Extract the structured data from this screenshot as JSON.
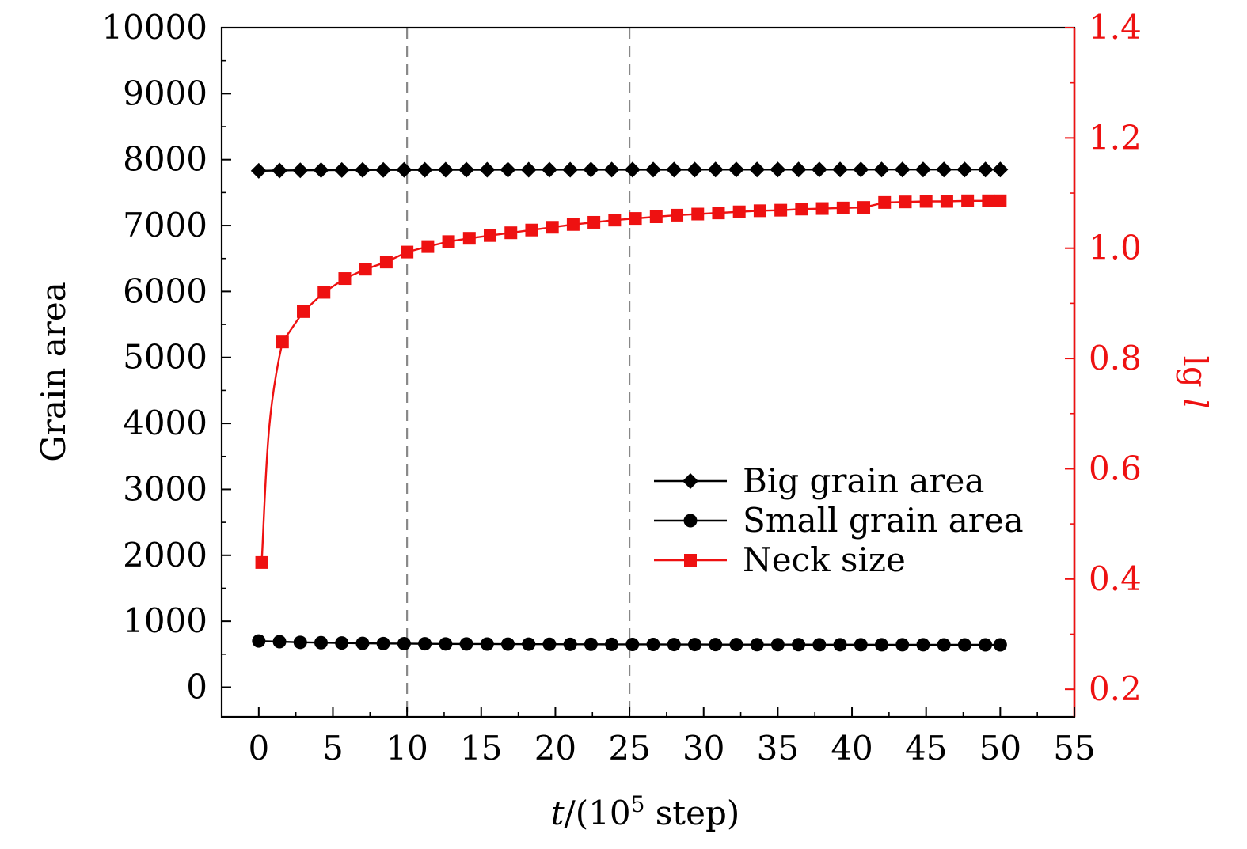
{
  "chart_data": {
    "type": "line",
    "title": "",
    "xlabel": "t/(10⁵ step)",
    "xlabel_parts": {
      "var": "t",
      "pre": "/(10",
      "sup": "5",
      "post": " step)"
    },
    "ylabel": "Grain area",
    "y2label": "lg l",
    "y2label_parts": {
      "pre": "lg ",
      "var": "l"
    },
    "xlim": [
      -2.5,
      55
    ],
    "ylim": [
      -450,
      10000
    ],
    "y2lim": [
      0.15,
      1.4
    ],
    "xticks": [
      0,
      5,
      10,
      15,
      20,
      25,
      30,
      35,
      40,
      45,
      50,
      55
    ],
    "yticks": [
      0,
      1000,
      2000,
      3000,
      4000,
      5000,
      6000,
      7000,
      8000,
      9000,
      10000
    ],
    "y2ticks": [
      "0.2",
      "0.4",
      "0.6",
      "0.8",
      "1.0",
      "1.2",
      "1.4"
    ],
    "vlines": [
      10,
      25
    ],
    "legend_position": "lower-right",
    "colors": {
      "black": "#000000",
      "red": "#ee1111",
      "dashed": "#888888"
    },
    "series": [
      {
        "name": "Big grain area",
        "axis": "left",
        "marker": "diamond",
        "color": "#000000",
        "x": [
          0,
          1.4,
          2.8,
          4.2,
          5.6,
          7,
          8.4,
          9.8,
          11.2,
          12.6,
          14,
          15.4,
          16.8,
          18.2,
          19.6,
          21,
          22.4,
          23.8,
          25.2,
          26.6,
          28,
          29.4,
          30.8,
          32.2,
          33.6,
          35,
          36.4,
          37.8,
          39.2,
          40.6,
          42,
          43.4,
          44.8,
          46.2,
          47.6,
          49,
          50
        ],
        "values": [
          7830,
          7835,
          7838,
          7840,
          7842,
          7843,
          7844,
          7845,
          7845,
          7846,
          7846,
          7846,
          7847,
          7847,
          7847,
          7847,
          7848,
          7848,
          7848,
          7848,
          7848,
          7848,
          7849,
          7849,
          7849,
          7849,
          7849,
          7849,
          7849,
          7849,
          7850,
          7850,
          7850,
          7850,
          7850,
          7850,
          7850
        ]
      },
      {
        "name": "Small grain area",
        "axis": "left",
        "marker": "circle",
        "color": "#000000",
        "x": [
          0,
          1.4,
          2.8,
          4.2,
          5.6,
          7,
          8.4,
          9.8,
          11.2,
          12.6,
          14,
          15.4,
          16.8,
          18.2,
          19.6,
          21,
          22.4,
          23.8,
          25.2,
          26.6,
          28,
          29.4,
          30.8,
          32.2,
          33.6,
          35,
          36.4,
          37.8,
          39.2,
          40.6,
          42,
          43.4,
          44.8,
          46.2,
          47.6,
          49,
          50
        ],
        "values": [
          700,
          690,
          680,
          675,
          670,
          665,
          662,
          660,
          658,
          656,
          655,
          654,
          653,
          652,
          651,
          650,
          650,
          649,
          648,
          648,
          647,
          647,
          646,
          646,
          645,
          645,
          645,
          644,
          644,
          644,
          643,
          643,
          643,
          642,
          642,
          642,
          642
        ]
      },
      {
        "name": "Neck size",
        "axis": "right",
        "marker": "square",
        "color": "#ee1111",
        "x": [
          0.2,
          1.6,
          3,
          4.4,
          5.8,
          7.2,
          8.6,
          10,
          11.4,
          12.8,
          14.2,
          15.6,
          17,
          18.4,
          19.8,
          21.2,
          22.6,
          24,
          25.4,
          26.8,
          28.2,
          29.6,
          31,
          32.4,
          33.8,
          35.2,
          36.6,
          38,
          39.4,
          40.8,
          42.2,
          43.6,
          45,
          46.4,
          47.8,
          49.2,
          50
        ],
        "values": [
          0.43,
          0.83,
          0.885,
          0.92,
          0.945,
          0.962,
          0.975,
          0.993,
          1.003,
          1.012,
          1.018,
          1.023,
          1.028,
          1.033,
          1.038,
          1.043,
          1.047,
          1.051,
          1.054,
          1.057,
          1.06,
          1.062,
          1.064,
          1.066,
          1.068,
          1.069,
          1.071,
          1.072,
          1.073,
          1.074,
          1.083,
          1.084,
          1.085,
          1.085,
          1.086,
          1.086,
          1.086
        ]
      }
    ]
  }
}
